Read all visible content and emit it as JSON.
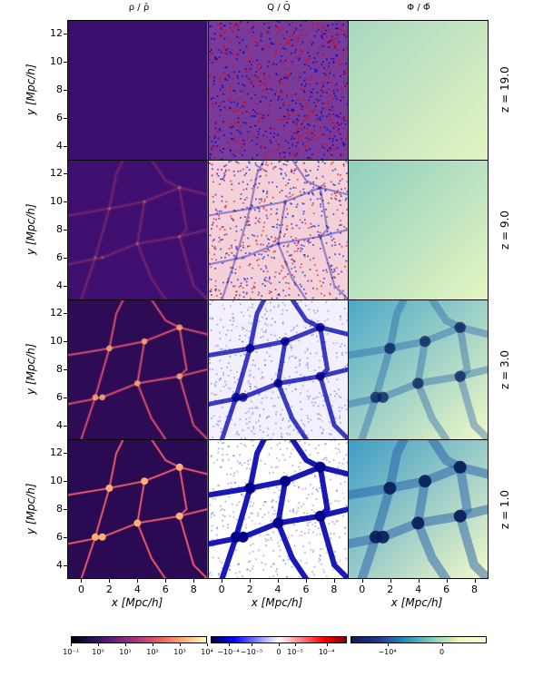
{
  "columns": [
    {
      "title": "ρ / ρ̄",
      "colormap": "magma"
    },
    {
      "title": "Q / Q̄",
      "colormap": "seismic"
    },
    {
      "title": "Φ / Φ̄",
      "colormap": "ygb"
    }
  ],
  "rows": [
    {
      "label": "z = 19.0"
    },
    {
      "label": "z = 9.0"
    },
    {
      "label": "z = 3.0"
    },
    {
      "label": "z = 1.0"
    }
  ],
  "axes": {
    "xlabel": "x [Mpc/h]",
    "ylabel": "y [Mpc/h]",
    "xticks": [
      "0",
      "2",
      "4",
      "6",
      "8"
    ],
    "yticks": [
      "4",
      "6",
      "8",
      "10",
      "12"
    ]
  },
  "colorbars": [
    {
      "name": "density",
      "ticks": [
        "10⁻¹",
        "10⁰",
        "10¹",
        "10²",
        "10³",
        "10⁴"
      ]
    },
    {
      "name": "q",
      "ticks": [
        "−10⁻⁴",
        "−10⁻⁵",
        "0",
        "10⁻⁵",
        "10⁻⁴"
      ]
    },
    {
      "name": "potential",
      "ticks": [
        "−10⁴",
        "0"
      ]
    }
  ],
  "colors": {
    "magma_dark": "#000004",
    "magma_mid": "#b5367a",
    "magma_light": "#fcfdbf",
    "seismic_blue": "#0000cc",
    "seismic_red": "#e00000",
    "ygb_dark": "#081d58",
    "ygb_light": "#ffffd9"
  }
}
